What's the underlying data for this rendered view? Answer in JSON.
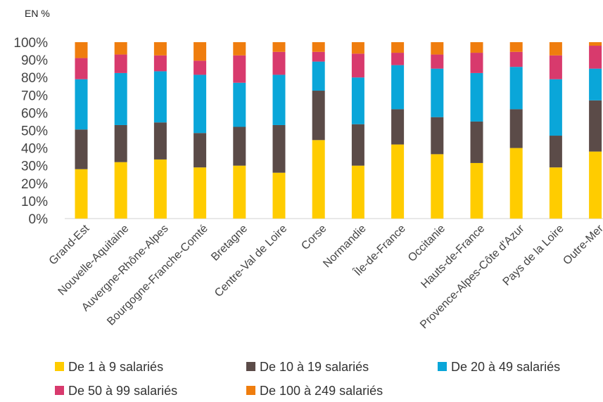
{
  "chart_data": {
    "type": "bar",
    "stacked": true,
    "unit_label": "EN %",
    "ylim": [
      0,
      100
    ],
    "yticks": [
      "0%",
      "10%",
      "20%",
      "30%",
      "40%",
      "50%",
      "60%",
      "70%",
      "80%",
      "90%",
      "100%"
    ],
    "categories": [
      "Grand-Est",
      "Nouvelle-Aquitaine",
      "Auvergne-Rhône-Alpes",
      "Bourgogne-Franche-Comté",
      "Bretagne",
      "Centre-Val de Loire",
      "Corse",
      "Normandie",
      "Île-de-France",
      "Occitanie",
      "Hauts-de-France",
      "Provence-Alpes-Côte d'Azur",
      "Pays de la Loire",
      "Outre-Mer"
    ],
    "series": [
      {
        "name": "De 1 à 9 salariés",
        "color": "#FFCC00",
        "values": [
          28,
          32,
          33.5,
          29,
          30,
          26,
          44.5,
          30,
          42,
          36.5,
          31.5,
          40,
          29,
          38
        ]
      },
      {
        "name": "De 10 à 19 salariés",
        "color": "#5B4B48",
        "values": [
          22.5,
          21,
          21,
          19.5,
          22,
          27,
          28,
          23.5,
          20,
          21,
          23.5,
          22,
          18,
          29
        ]
      },
      {
        "name": "De 20 à 49 salariés",
        "color": "#0AA6D9",
        "values": [
          28.5,
          29.5,
          29,
          33,
          25,
          28.5,
          16.5,
          26.5,
          25,
          27.5,
          27.5,
          24,
          32,
          18
        ]
      },
      {
        "name": "De 50 à 99 salariés",
        "color": "#D83A6D",
        "values": [
          12,
          10.5,
          9,
          8,
          15.5,
          13,
          5.5,
          13.5,
          7,
          8,
          11.5,
          8.5,
          13.5,
          13
        ]
      },
      {
        "name": "De 100 à 249 salariés",
        "color": "#EF7D0E",
        "values": [
          9,
          7,
          7.5,
          10.5,
          7.5,
          5.5,
          5.5,
          6.5,
          6,
          7,
          6,
          5.5,
          7.5,
          2
        ]
      }
    ],
    "grid": false,
    "legend_position": "bottom"
  }
}
